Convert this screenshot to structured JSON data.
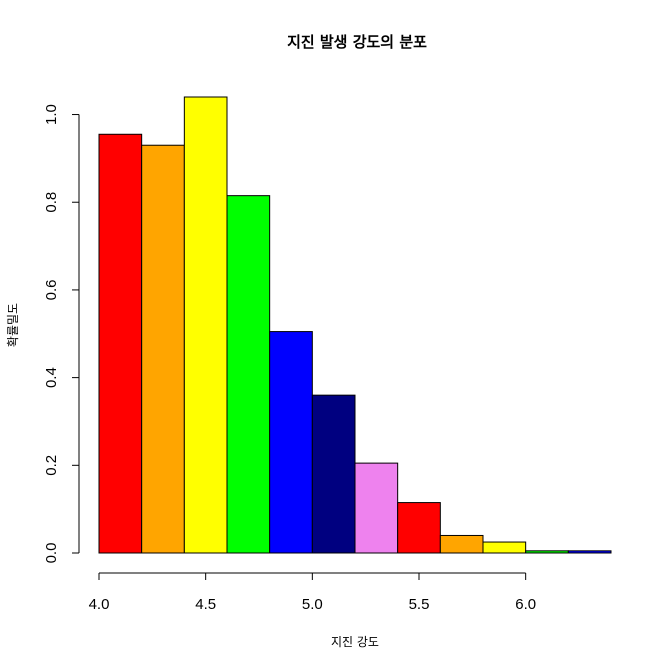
{
  "chart_data": {
    "type": "bar",
    "title": "지진 발생 강도의 분포",
    "xlabel": "지진 강도",
    "ylabel": "확률밀도",
    "xlim": [
      4.0,
      6.4
    ],
    "ylim": [
      0.0,
      1.04
    ],
    "x_ticks": [
      4.0,
      4.5,
      5.0,
      5.5,
      6.0
    ],
    "x_tick_labels": [
      "4.0",
      "4.5",
      "5.0",
      "5.5",
      "6.0"
    ],
    "y_ticks": [
      0.0,
      0.2,
      0.4,
      0.6,
      0.8,
      1.0
    ],
    "y_tick_labels": [
      "0.0",
      "0.2",
      "0.4",
      "0.6",
      "0.8",
      "1.0"
    ],
    "grid": false,
    "bins": [
      {
        "start": 4.0,
        "end": 4.2,
        "density": 0.955,
        "color": "#FF0000"
      },
      {
        "start": 4.2,
        "end": 4.4,
        "density": 0.93,
        "color": "#FFA500"
      },
      {
        "start": 4.4,
        "end": 4.6,
        "density": 1.04,
        "color": "#FFFF00"
      },
      {
        "start": 4.6,
        "end": 4.8,
        "density": 0.815,
        "color": "#00FF00"
      },
      {
        "start": 4.8,
        "end": 5.0,
        "density": 0.505,
        "color": "#0000FF"
      },
      {
        "start": 5.0,
        "end": 5.2,
        "density": 0.36,
        "color": "#000080"
      },
      {
        "start": 5.2,
        "end": 5.4,
        "density": 0.205,
        "color": "#EE82EE"
      },
      {
        "start": 5.4,
        "end": 5.6,
        "density": 0.115,
        "color": "#FF0000"
      },
      {
        "start": 5.6,
        "end": 5.8,
        "density": 0.04,
        "color": "#FFA500"
      },
      {
        "start": 5.8,
        "end": 6.0,
        "density": 0.025,
        "color": "#FFFF00"
      },
      {
        "start": 6.0,
        "end": 6.2,
        "density": 0.005,
        "color": "#00FF00"
      },
      {
        "start": 6.2,
        "end": 6.4,
        "density": 0.005,
        "color": "#0000FF"
      }
    ]
  }
}
